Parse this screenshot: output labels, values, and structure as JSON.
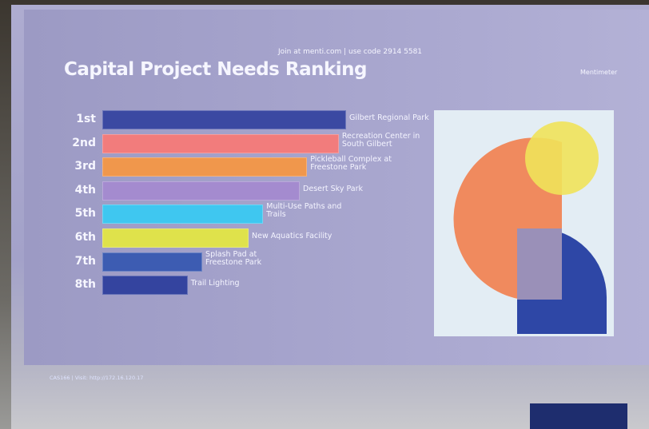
{
  "header": {
    "join": "Join at menti.com | use code 2914 5581",
    "brand": "Mentimeter"
  },
  "footer": "CAS166  |  Visit: http://172.16.120.17",
  "chart_data": {
    "type": "bar",
    "orientation": "horizontal",
    "title": "Capital Project Needs Ranking",
    "ranks": [
      "1st",
      "2nd",
      "3rd",
      "4th",
      "5th",
      "6th",
      "7th",
      "8th"
    ],
    "categories": [
      "Gilbert Regional Park",
      "Recreation Center in South Gilbert",
      "Pickleball Complex at Freestone Park",
      "Desert Sky Park",
      "Multi-Use Paths and Trails",
      "New Aquatics Facility",
      "Splash Pad at Freestone Park",
      "Trail Lighting"
    ],
    "values": [
      100,
      97,
      84,
      81,
      66,
      60,
      41,
      35
    ],
    "colors": [
      "#3b49a2",
      "#f27c7c",
      "#f0974c",
      "#a48bcf",
      "#3fc7f0",
      "#dfe24b",
      "#3d5cb2",
      "#34449f"
    ],
    "xlim": [
      0,
      100
    ]
  }
}
